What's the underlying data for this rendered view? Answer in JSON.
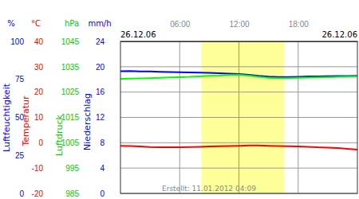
{
  "chart_data": {
    "type": "line",
    "annotations": [
      {
        "text": "26.12.06",
        "position": "top-left"
      },
      {
        "text": "26.12.06",
        "position": "top-right"
      }
    ],
    "footer": "Erstellt: 11.01.2012 04:09",
    "x": [
      0,
      1,
      2,
      3,
      4,
      5,
      6,
      7,
      8,
      9,
      10,
      11,
      12,
      13,
      14,
      15,
      16,
      17,
      18,
      19,
      20,
      21,
      22,
      23,
      24
    ],
    "xlim": [
      0,
      24
    ],
    "xticks": [
      {
        "value": 6,
        "label": "06:00"
      },
      {
        "value": 12,
        "label": "12:00"
      },
      {
        "value": 18,
        "label": "18:00"
      }
    ],
    "daylight": [
      8.2,
      16.6
    ],
    "grid": true,
    "axes": [
      {
        "axis": "y",
        "title": "Luftfeuchtigkeit",
        "unit": "%",
        "color": "#0000ff",
        "ylim": [
          0,
          100
        ],
        "yticks": [
          0,
          25,
          50,
          75,
          100
        ]
      },
      {
        "axis": "y2",
        "title": "Temperatur",
        "unit": "°C",
        "color": "#ff0000",
        "ylim": [
          -20,
          40
        ],
        "yticks": [
          -20,
          -10,
          0,
          10,
          20,
          30,
          40
        ]
      },
      {
        "axis": "y3",
        "title": "Luftdruck",
        "unit": "hPa",
        "color": "#00cc00",
        "ylim": [
          985,
          1045
        ],
        "yticks": [
          985,
          995,
          1005,
          1015,
          1025,
          1035,
          1045
        ]
      },
      {
        "axis": "y4",
        "title": "Niederschlag",
        "unit": "mm/h",
        "color": "#0000ff",
        "ylim": [
          0,
          24
        ],
        "yticks": [
          0,
          4,
          8,
          12,
          16,
          20,
          24
        ]
      }
    ],
    "series": [
      {
        "name": "Luftfeuchtigkeit",
        "axis": "y",
        "color": "#0000ff",
        "values": [
          80.4,
          80.5,
          80.3,
          80.2,
          80.0,
          79.9,
          79.7,
          79.6,
          79.5,
          79.3,
          79.0,
          78.8,
          78.5,
          78.0,
          77.3,
          76.8,
          76.6,
          76.6,
          76.7,
          76.9,
          77.0,
          77.1,
          77.2,
          77.2,
          77.3
        ]
      },
      {
        "name": "Luftdruck",
        "axis": "y3",
        "color": "#00ff00",
        "values": [
          1030.2,
          1030.3,
          1030.4,
          1030.5,
          1030.6,
          1030.8,
          1030.9,
          1031.0,
          1031.2,
          1031.4,
          1031.5,
          1031.7,
          1031.8,
          1031.5,
          1031.0,
          1030.6,
          1030.5,
          1030.5,
          1030.6,
          1030.7,
          1030.8,
          1030.9,
          1031.0,
          1031.1,
          1031.2
        ]
      },
      {
        "name": "Temperatur",
        "axis": "y2",
        "color": "#ff0000",
        "values": [
          -1.2,
          -1.3,
          -1.5,
          -1.7,
          -1.8,
          -1.8,
          -1.8,
          -1.7,
          -1.6,
          -1.5,
          -1.4,
          -1.3,
          -1.2,
          -1.1,
          -1.1,
          -1.2,
          -1.3,
          -1.4,
          -1.5,
          -1.6,
          -1.8,
          -1.9,
          -2.1,
          -2.4,
          -2.7
        ]
      }
    ]
  }
}
